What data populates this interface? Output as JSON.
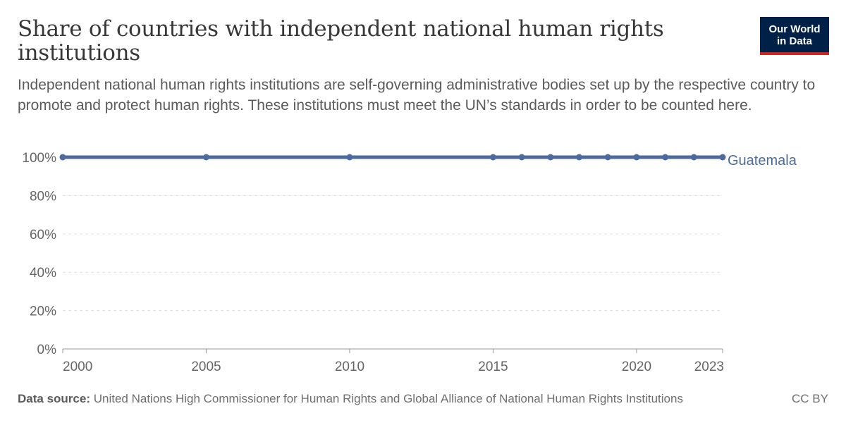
{
  "header": {
    "title": "Share of countries with independent national human rights institutions",
    "subtitle": "Independent national human rights institutions are self-governing administrative bodies set up by the respective country to promote and protect human rights. These institutions must meet the UN’s standards in order to be counted here."
  },
  "logo": {
    "line1": "Our World",
    "line2": "in Data"
  },
  "footer": {
    "source_label": "Data source:",
    "source_text": "United Nations High Commissioner for Human Rights and Global Alliance of National Human Rights Institutions",
    "license": "CC BY"
  },
  "colors": {
    "series": "#4c6a9c",
    "grid": "#dddddd",
    "axis_text": "#666666",
    "logo_bg": "#002147",
    "logo_accent": "#ce261e"
  },
  "chart_data": {
    "type": "line",
    "x": [
      2000,
      2005,
      2010,
      2015,
      2016,
      2017,
      2018,
      2019,
      2020,
      2021,
      2022,
      2023
    ],
    "series": [
      {
        "name": "Guatemala",
        "values": [
          100,
          100,
          100,
          100,
          100,
          100,
          100,
          100,
          100,
          100,
          100,
          100
        ]
      }
    ],
    "xlim": [
      2000,
      2023
    ],
    "ylim": [
      0,
      100
    ],
    "x_ticks": [
      2000,
      2005,
      2010,
      2015,
      2020,
      2023
    ],
    "y_ticks": [
      0,
      20,
      40,
      60,
      80,
      100
    ],
    "y_tick_suffix": "%",
    "grid": "horizontal dashed",
    "legend": "inline-right"
  }
}
